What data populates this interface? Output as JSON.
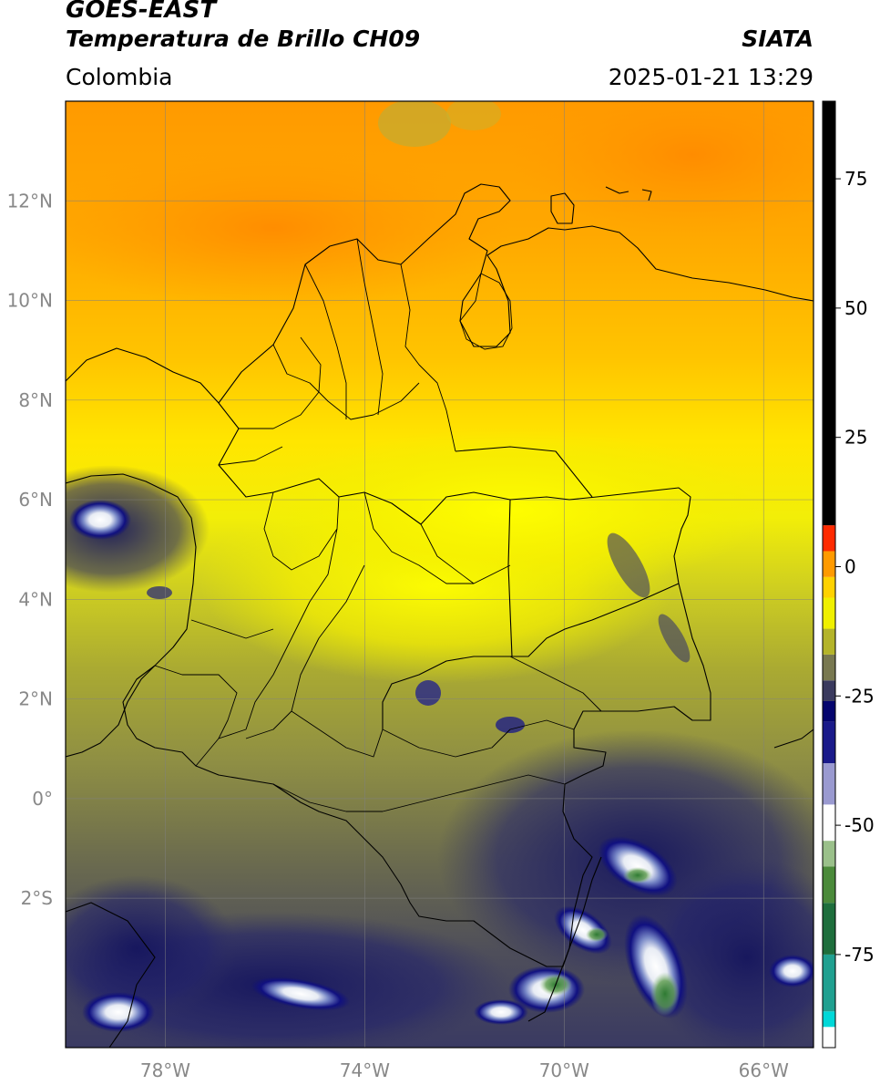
{
  "header": {
    "satellite": "GOES-EAST",
    "product": "Temperatura de Brillo CH09",
    "region": "Colombia",
    "source": "SIATA",
    "datetime": "2025-01-21 13:29"
  },
  "chart_data": {
    "type": "heatmap",
    "x_ticks": [
      {
        "value": -78,
        "label": "78°W"
      },
      {
        "value": -74,
        "label": "74°W"
      },
      {
        "value": -70,
        "label": "70°W"
      },
      {
        "value": -66,
        "label": "66°W"
      }
    ],
    "y_ticks": [
      {
        "value": 12,
        "label": "12°N"
      },
      {
        "value": 10,
        "label": "10°N"
      },
      {
        "value": 8,
        "label": "8°N"
      },
      {
        "value": 6,
        "label": "6°N"
      },
      {
        "value": 4,
        "label": "4°N"
      },
      {
        "value": 2,
        "label": "2°N"
      },
      {
        "value": 0,
        "label": "0°"
      },
      {
        "value": -2,
        "label": "2°S"
      }
    ],
    "xlim": [
      -80,
      -65
    ],
    "ylim": [
      -5,
      14
    ],
    "grid": true,
    "colorbar": {
      "ticks": [
        75,
        50,
        25,
        0,
        -25,
        -50,
        -75
      ],
      "range": [
        -93,
        90
      ],
      "colors": [
        {
          "from": -93,
          "to": -89,
          "color": "#ffffff"
        },
        {
          "from": -89,
          "to": -86,
          "color": "#00d8d8"
        },
        {
          "from": -86,
          "to": -75,
          "color": "#20a090"
        },
        {
          "from": -75,
          "to": -65,
          "color": "#1e6e3c"
        },
        {
          "from": -65,
          "to": -58,
          "color": "#4b8a3a"
        },
        {
          "from": -58,
          "to": -53,
          "color": "#9ac08a"
        },
        {
          "from": -53,
          "to": -46,
          "color": "#ffffff"
        },
        {
          "from": -46,
          "to": -38,
          "color": "#9a9ad0"
        },
        {
          "from": -38,
          "to": -30,
          "color": "#1a1a8a"
        },
        {
          "from": -30,
          "to": -26,
          "color": "#05056e"
        },
        {
          "from": -26,
          "to": -22,
          "color": "#3a3a5e"
        },
        {
          "from": -22,
          "to": -17,
          "color": "#787850"
        },
        {
          "from": -17,
          "to": -12,
          "color": "#b4b42a"
        },
        {
          "from": -12,
          "to": -6,
          "color": "#f0f000"
        },
        {
          "from": -6,
          "to": -2,
          "color": "#ffd200"
        },
        {
          "from": -2,
          "to": 3,
          "color": "#ff9a00"
        },
        {
          "from": 3,
          "to": 8,
          "color": "#ff2a00"
        },
        {
          "from": 8,
          "to": 90,
          "color": "#000000"
        }
      ]
    }
  }
}
